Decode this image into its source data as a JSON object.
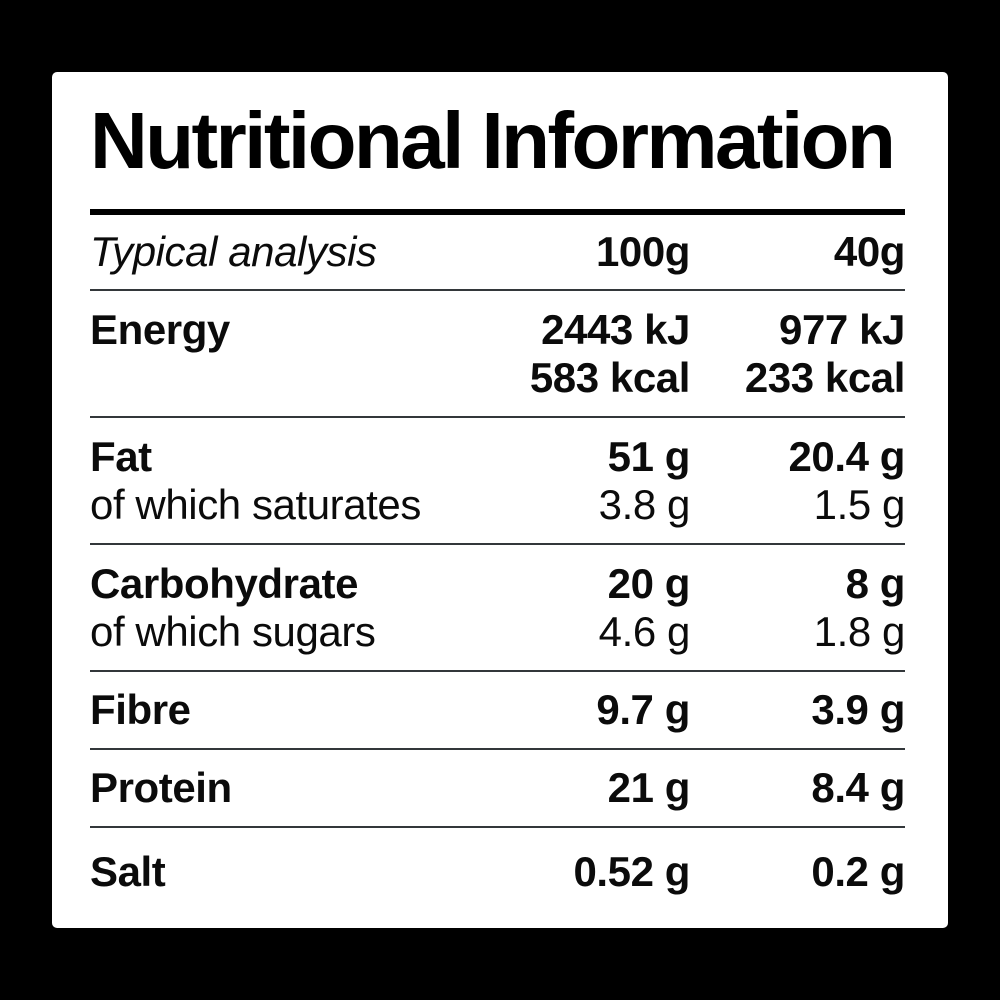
{
  "title": "Nutritional Information",
  "header": {
    "label": "Typical analysis",
    "col_100g": "100g",
    "col_40g": "40g"
  },
  "rows": {
    "energy": {
      "label": "Energy",
      "per100_kj": "2443 kJ",
      "per40_kj": "977 kJ",
      "per100_kcal": "583 kcal",
      "per40_kcal": "233 kcal"
    },
    "fat": {
      "label": "Fat",
      "per100": "51 g",
      "per40": "20.4 g",
      "sub_label": "of which saturates",
      "sub_per100": "3.8 g",
      "sub_per40": "1.5 g"
    },
    "carbohydrate": {
      "label": "Carbohydrate",
      "per100": "20 g",
      "per40": "8 g",
      "sub_label": "of which sugars",
      "sub_per100": "4.6 g",
      "sub_per40": "1.8 g"
    },
    "fibre": {
      "label": "Fibre",
      "per100": "9.7 g",
      "per40": "3.9 g"
    },
    "protein": {
      "label": "Protein",
      "per100": "21 g",
      "per40": "8.4 g"
    },
    "salt": {
      "label": "Salt",
      "per100": "0.52 g",
      "per40": "0.2 g"
    }
  },
  "colors": {
    "background": "#000000",
    "card": "#ffffff",
    "text": "#0b0b0b",
    "rule_thick": "#000000",
    "rule_thin": "#33373a"
  }
}
